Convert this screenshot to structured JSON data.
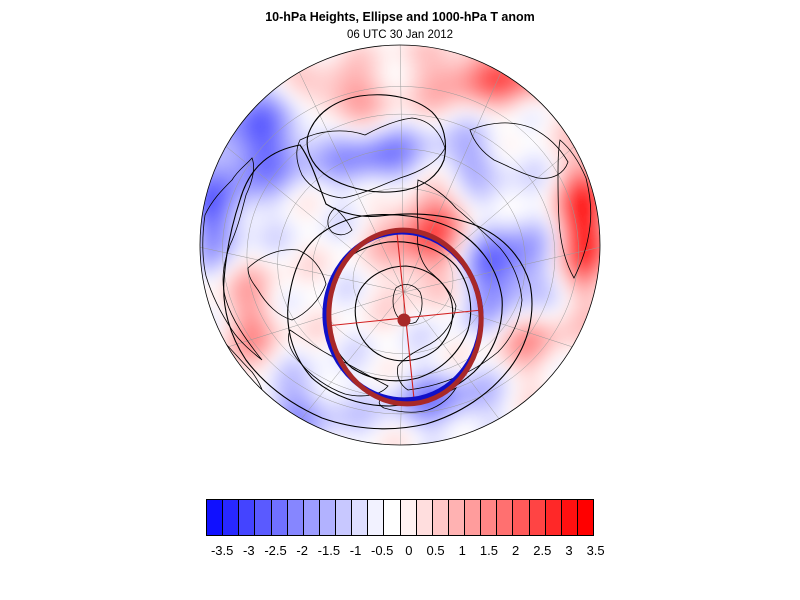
{
  "header": {
    "title": "10-hPa Heights, Ellipse and 1000-hPa T anom",
    "subtitle": "06 UTC 30 Jan 2012"
  },
  "map": {
    "projection": "polar-orthographic-north-hemisphere",
    "field": "1000-hPa temperature anomaly (color fill)",
    "overlays": [
      "10-hPa height contours (black)",
      "vortex ellipse (blue)",
      "fitted ellipse (dark red)",
      "ellipse axes (red)",
      "ellipse centroid (dark red dot)"
    ],
    "colors": {
      "ellipse_blue": "#1010c8",
      "ellipse_red": "#a82828",
      "axis_red": "#d22020",
      "contour": "#000000"
    }
  },
  "colorbar": {
    "colors": [
      "#1010ff",
      "#2828ff",
      "#4444ff",
      "#5a5aff",
      "#7070ff",
      "#8686ff",
      "#9c9cff",
      "#b2b2ff",
      "#c8c8ff",
      "#dedeff",
      "#f2f2ff",
      "#ffffff",
      "#fff2f2",
      "#ffdede",
      "#ffc8c8",
      "#ffb2b2",
      "#ff9c9c",
      "#ff8686",
      "#ff7070",
      "#ff5a5a",
      "#ff4444",
      "#ff2828",
      "#ff1010",
      "#ff0000"
    ],
    "labels": [
      "-3.5",
      "-3",
      "-2.5",
      "-2",
      "-1.5",
      "-1",
      "-0.5",
      "0",
      "0.5",
      "1",
      "1.5",
      "2",
      "2.5",
      "3",
      "3.5"
    ]
  }
}
